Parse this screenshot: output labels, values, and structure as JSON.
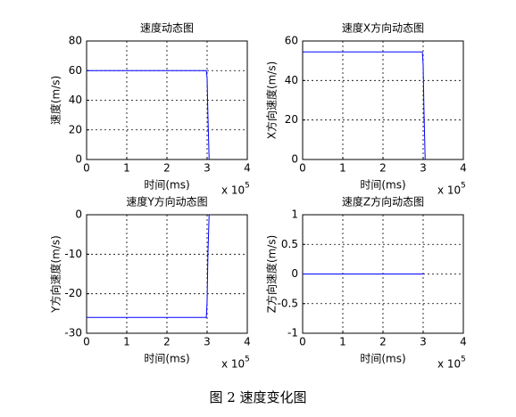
{
  "chart_data": [
    {
      "type": "line",
      "title": "速度动态图",
      "x_label": "时间(ms)",
      "y_label": "速度(m/s)",
      "x_scale_label": "x 10",
      "x_scale_exponent": "5",
      "x": [
        0,
        2.98,
        3.0,
        3.02,
        3.05
      ],
      "values": [
        60,
        60,
        55,
        30,
        0
      ],
      "color": "#0000ff",
      "xlim": [
        0,
        4
      ],
      "xticks": [
        0,
        1,
        2,
        3,
        4
      ],
      "ylim": [
        0,
        80
      ],
      "yticks": [
        0,
        20,
        40,
        60,
        80
      ],
      "grid": true
    },
    {
      "type": "line",
      "title": "速度X方向动态图",
      "x_label": "时间(ms)",
      "y_label": "X方向速度(m/s)",
      "x_scale_label": "x 10",
      "x_scale_exponent": "5",
      "x": [
        0,
        2.98,
        3.0,
        3.02,
        3.05
      ],
      "values": [
        54.5,
        54.5,
        48,
        25,
        0
      ],
      "color": "#0000ff",
      "xlim": [
        0,
        4
      ],
      "xticks": [
        0,
        1,
        2,
        3,
        4
      ],
      "ylim": [
        0,
        60
      ],
      "yticks": [
        0,
        20,
        40,
        60
      ],
      "grid": true
    },
    {
      "type": "line",
      "title": "速度Y方向动态图",
      "x_label": "时间(ms)",
      "y_label": "Y方向速度(m/s)",
      "x_scale_label": "x 10",
      "x_scale_exponent": "5",
      "x": [
        0,
        2.98,
        3.0,
        3.02,
        3.05
      ],
      "values": [
        -26,
        -26,
        -22,
        -10,
        0
      ],
      "color": "#0000ff",
      "xlim": [
        0,
        4
      ],
      "xticks": [
        0,
        1,
        2,
        3,
        4
      ],
      "ylim": [
        -30,
        0
      ],
      "yticks": [
        -30,
        -20,
        -10,
        0
      ],
      "grid": true
    },
    {
      "type": "line",
      "title": "速度Z方向动态图",
      "x_label": "时间(ms)",
      "y_label": "Z方向速度(m/s)",
      "x_scale_label": "x 10",
      "x_scale_exponent": "5",
      "x": [
        0,
        3.0
      ],
      "values": [
        0,
        0
      ],
      "color": "#0000ff",
      "xlim": [
        0,
        4
      ],
      "xticks": [
        0,
        1,
        2,
        3,
        4
      ],
      "ylim": [
        -1,
        1
      ],
      "yticks": [
        -1,
        -0.5,
        0,
        0.5,
        1
      ],
      "grid": true
    }
  ],
  "caption": "图 2  速度变化图"
}
